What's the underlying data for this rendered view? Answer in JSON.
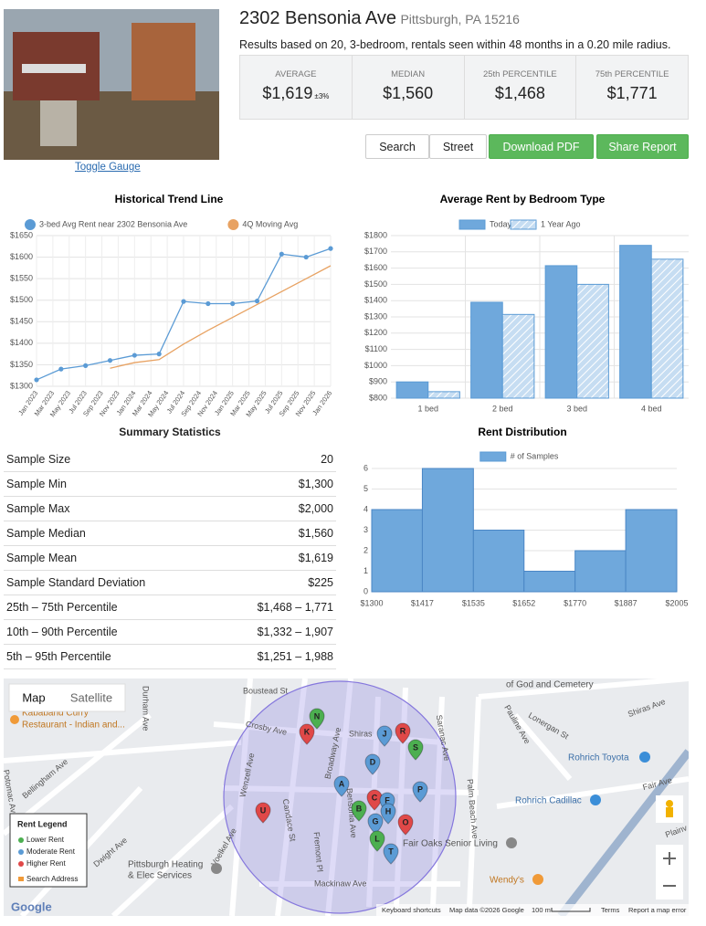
{
  "header": {
    "address": "2302 Bensonia Ave",
    "city": "Pittsburgh, PA 15216",
    "subtitle": "Results based on 20, 3-bedroom, rentals seen within 48 months in a 0.20 mile radius.",
    "toggle": "Toggle Gauge"
  },
  "stats": [
    {
      "label": "AVERAGE",
      "value": "$1,619",
      "extra": "±3%"
    },
    {
      "label": "MEDIAN",
      "value": "$1,560"
    },
    {
      "label": "25th PERCENTILE",
      "value": "$1,468"
    },
    {
      "label": "75th PERCENTILE",
      "value": "$1,771"
    }
  ],
  "buttons": [
    "Search",
    "Street",
    "Download PDF",
    "Share Report"
  ],
  "chart_data": [
    {
      "type": "line",
      "title": "Historical Trend Line",
      "x": [
        "2023-01",
        "2023-04",
        "2023-07",
        "2023-10",
        "2024-01",
        "2024-04",
        "2024-07",
        "2024-10",
        "2025-01",
        "2025-04",
        "2025-07",
        "2025-10",
        "2026-01"
      ],
      "series": [
        {
          "name": "3-bed Avg Rent near 2302 Bensonia Ave",
          "color": "#5b9bd5",
          "values": [
            1315,
            1340,
            1348,
            1360,
            1372,
            1375,
            1497,
            1492,
            1492,
            1498,
            1607,
            1600,
            1620
          ]
        },
        {
          "name": "4Q Moving Avg",
          "color": "#e8a262",
          "values": [
            null,
            null,
            null,
            1342,
            1355,
            1362,
            1398,
            1430,
            1460,
            1490,
            1520,
            1550,
            1580
          ]
        }
      ],
      "xlim": [
        "2023-01",
        "2026-01"
      ],
      "xticks": [
        {
          "value": "2023-01",
          "label": "Jan 2023"
        },
        {
          "value": "2023-03",
          "label": "Mar 2023"
        },
        {
          "value": "2023-05",
          "label": "May 2023"
        },
        {
          "value": "2023-07",
          "label": "Jul 2023"
        },
        {
          "value": "2023-09",
          "label": "Sep 2023"
        },
        {
          "value": "2023-11",
          "label": "Nov 2023"
        },
        {
          "value": "2024-01",
          "label": "Jan 2024"
        },
        {
          "value": "2024-03",
          "label": "Mar 2024"
        },
        {
          "value": "2024-05",
          "label": "May 2024"
        },
        {
          "value": "2024-07",
          "label": "Jul 2024"
        },
        {
          "value": "2024-09",
          "label": "Sep 2024"
        },
        {
          "value": "2024-11",
          "label": "Nov 2024"
        },
        {
          "value": "2025-01",
          "label": "Jan 2025"
        },
        {
          "value": "2025-03",
          "label": "Mar 2025"
        },
        {
          "value": "2025-05",
          "label": "May 2025"
        },
        {
          "value": "2025-07",
          "label": "Jul 2025"
        },
        {
          "value": "2025-09",
          "label": "Sep 2025"
        },
        {
          "value": "2025-11",
          "label": "Nov 2025"
        },
        {
          "value": "2026-01",
          "label": "Jan 2026"
        }
      ],
      "ylim": [
        1300,
        1650
      ],
      "yticks": [
        {
          "value": 1300,
          "label": "$1300"
        },
        {
          "value": 1350,
          "label": "$1350"
        },
        {
          "value": 1400,
          "label": "$1400"
        },
        {
          "value": 1450,
          "label": "$1450"
        },
        {
          "value": 1500,
          "label": "$1500"
        },
        {
          "value": 1550,
          "label": "$1550"
        },
        {
          "value": 1600,
          "label": "$1600"
        },
        {
          "value": 1650,
          "label": "$1650"
        }
      ],
      "grid": true
    },
    {
      "type": "bar",
      "title": "Average Rent by Bedroom Type",
      "categories": [
        "1 bed",
        "2 bed",
        "3 bed",
        "4 bed"
      ],
      "series": [
        {
          "name": "Today",
          "color": "#6fa8dc",
          "values": [
            900,
            1390,
            1615,
            1740
          ]
        },
        {
          "name": "1 Year Ago",
          "color": "#c6ddf2",
          "hatch": true,
          "values": [
            840,
            1315,
            1500,
            1655
          ]
        }
      ],
      "ylim": [
        800,
        1800
      ],
      "yticks": [
        {
          "value": 800,
          "label": "$800"
        },
        {
          "value": 900,
          "label": "$900"
        },
        {
          "value": 1000,
          "label": "$1000"
        },
        {
          "value": 1100,
          "label": "$1100"
        },
        {
          "value": 1200,
          "label": "$1200"
        },
        {
          "value": 1300,
          "label": "$1300"
        },
        {
          "value": 1400,
          "label": "$1400"
        },
        {
          "value": 1500,
          "label": "$1500"
        },
        {
          "value": 1600,
          "label": "$1600"
        },
        {
          "value": 1700,
          "label": "$1700"
        },
        {
          "value": 1800,
          "label": "$1800"
        }
      ],
      "grid": true
    },
    {
      "type": "histogram",
      "title": "Rent Distribution",
      "series": [
        {
          "name": "# of Samples",
          "color": "#6fa8dc",
          "values": [
            4,
            6,
            3,
            1,
            2,
            4
          ]
        }
      ],
      "bins": [
        1300,
        1417,
        1535,
        1652,
        1770,
        1887,
        2005
      ],
      "xticks": [
        {
          "value": 1300,
          "label": "$1300"
        },
        {
          "value": 1417,
          "label": "$1417"
        },
        {
          "value": 1535,
          "label": "$1535"
        },
        {
          "value": 1652,
          "label": "$1652"
        },
        {
          "value": 1770,
          "label": "$1770"
        },
        {
          "value": 1887,
          "label": "$1887"
        },
        {
          "value": 2005,
          "label": "$2005"
        }
      ],
      "xlim": [
        1300,
        2005
      ],
      "ylim": [
        0,
        6
      ],
      "yticks": [
        0,
        1,
        2,
        3,
        4,
        5,
        6
      ],
      "grid": true
    }
  ],
  "summary": {
    "title": "Summary Statistics",
    "rows": [
      [
        "Sample Size",
        "20"
      ],
      [
        "Sample Min",
        "$1,300"
      ],
      [
        "Sample Max",
        "$2,000"
      ],
      [
        "Sample Median",
        "$1,560"
      ],
      [
        "Sample Mean",
        "$1,619"
      ],
      [
        "Sample Standard Deviation",
        "$225"
      ],
      [
        "25th – 75th Percentile",
        "$1,468 – 1,771"
      ],
      [
        "10th – 90th Percentile",
        "$1,332 – 1,907"
      ],
      [
        "5th – 95th Percentile",
        "$1,251 – 1,988"
      ]
    ]
  },
  "map": {
    "tabs": [
      "Map",
      "Satellite"
    ],
    "streets": [
      "Boustead St",
      "Crosby Ave",
      "Shiras",
      "Shiras Ave",
      "Durham Ave",
      "Wenzell Ave",
      "Bellingham Ave",
      "Potomac Ave",
      "Dwight Ave",
      "Candace St",
      "Fremont Pl",
      "Broadway Ave",
      "Bensonia Ave",
      "Saranac Ave",
      "Palm Beach Ave",
      "Pauline Ave",
      "Lonergan St",
      "Fair Ave",
      "Plainv",
      "Voelkel Ave",
      "Mackinaw Ave"
    ],
    "places": [
      {
        "lines": [
          "Kababand Curry",
          "Restaurant - Indian and..."
        ]
      },
      {
        "lines": [
          "Rohrich Toyota"
        ]
      },
      {
        "lines": [
          "Rohrich Cadillac"
        ]
      },
      {
        "lines": [
          "Fair Oaks Senior Living"
        ]
      },
      {
        "lines": [
          "Pittsburgh Heating",
          "& Elec Services"
        ]
      },
      {
        "lines": [
          "Wendy's"
        ]
      },
      {
        "lines": [
          "of God and Cemetery"
        ]
      }
    ],
    "pins": [
      {
        "letter": "N",
        "color": "#4caf50"
      },
      {
        "letter": "K",
        "color": "#e04848"
      },
      {
        "letter": "J",
        "color": "#5b9bd5"
      },
      {
        "letter": "R",
        "color": "#e04848"
      },
      {
        "letter": "S",
        "color": "#4caf50"
      },
      {
        "letter": "D",
        "color": "#5b9bd5"
      },
      {
        "letter": "A",
        "color": "#5b9bd5"
      },
      {
        "letter": "P",
        "color": "#5b9bd5"
      },
      {
        "letter": "C",
        "color": "#e04848"
      },
      {
        "letter": "F",
        "color": "#5b9bd5"
      },
      {
        "letter": "B",
        "color": "#4caf50"
      },
      {
        "letter": "H",
        "color": "#5b9bd5"
      },
      {
        "letter": "G",
        "color": "#5b9bd5"
      },
      {
        "letter": "U",
        "color": "#e04848"
      },
      {
        "letter": "O",
        "color": "#e04848"
      },
      {
        "letter": "L",
        "color": "#4caf50"
      },
      {
        "letter": "T",
        "color": "#5b9bd5"
      }
    ],
    "legend": {
      "title": "Rent Legend",
      "items": [
        "Lower Rent",
        "Moderate Rent",
        "Higher Rent",
        "Search Address"
      ]
    },
    "logo": "Google",
    "footer": [
      "Keyboard shortcuts",
      "Map data ©2026 Google",
      "100 m",
      "Terms",
      "Report a map error"
    ]
  }
}
